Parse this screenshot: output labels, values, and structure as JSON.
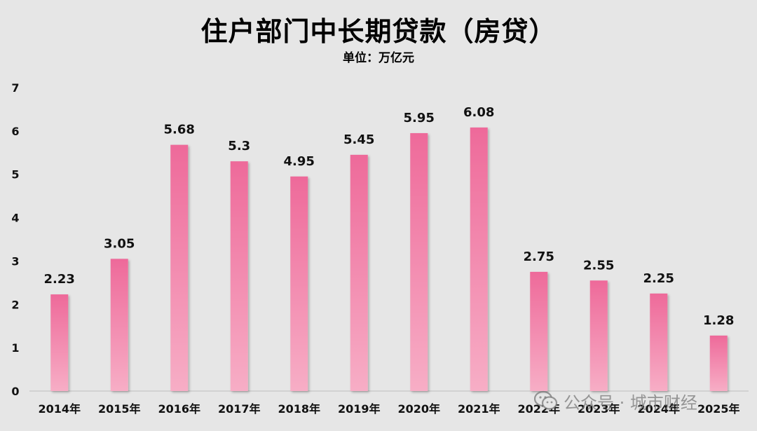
{
  "chart_data": {
    "type": "bar",
    "title": "住户部门中长期贷款（房贷）",
    "subtitle": "单位：万亿元",
    "categories": [
      "2014年",
      "2015年",
      "2016年",
      "2017年",
      "2018年",
      "2019年",
      "2020年",
      "2021年",
      "2022年",
      "2023年",
      "2024年",
      "2025年"
    ],
    "values": [
      2.23,
      3.05,
      5.68,
      5.3,
      4.95,
      5.45,
      5.95,
      6.08,
      2.75,
      2.55,
      2.25,
      1.28
    ],
    "value_labels": [
      "2.23",
      "3.05",
      "5.68",
      "5.3",
      "4.95",
      "5.45",
      "5.95",
      "6.08",
      "2.75",
      "2.55",
      "2.25",
      "1.28"
    ],
    "ylim": [
      0,
      7
    ],
    "yticks": [
      "0",
      "1",
      "2",
      "3",
      "4",
      "5",
      "6",
      "7"
    ],
    "grid": false,
    "legend": "none",
    "colors": {
      "bar_top": "#ee6a9a",
      "bar_bottom": "#f7aec6",
      "background": "#e6e6e6"
    }
  },
  "watermark": {
    "icon": "wechat-icon",
    "text": "公众号 · 城市财经"
  }
}
